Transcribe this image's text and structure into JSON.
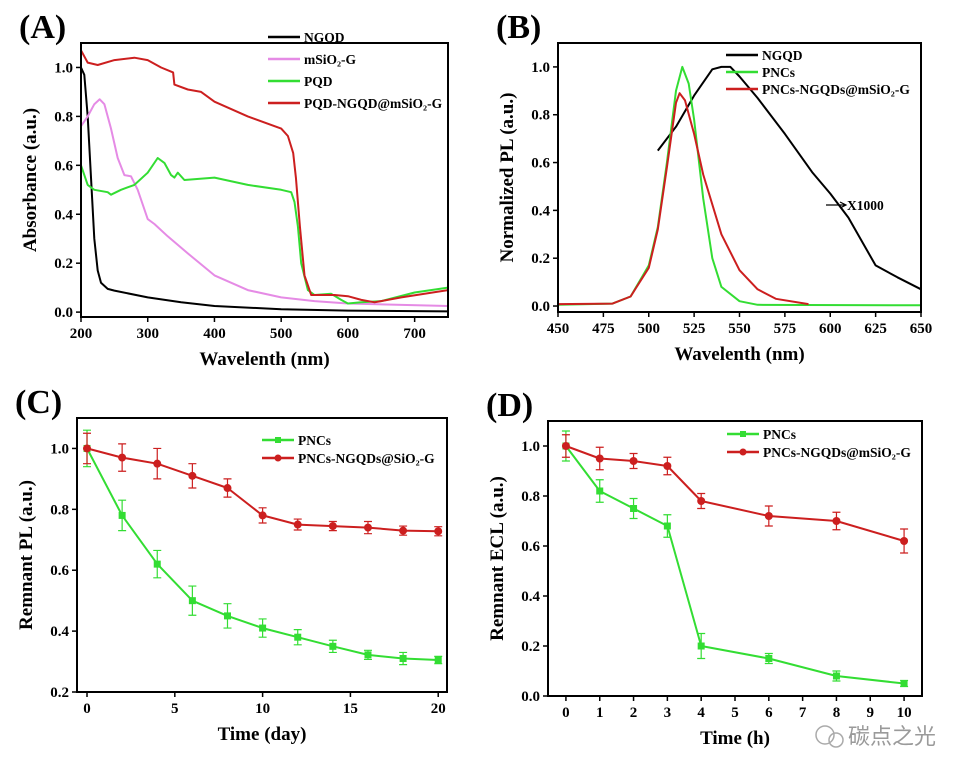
{
  "watermark": "碳点之光",
  "colors": {
    "black": "#000000",
    "pink": "#e58be5",
    "green": "#33dd33",
    "red": "#cc1f1f"
  },
  "chart_data": [
    {
      "panel": "(A)",
      "type": "line",
      "xlabel": "Wavelenth (nm)",
      "ylabel": "Absorbance (a.u.)",
      "xlim": [
        200,
        750
      ],
      "ylim": [
        -0.02,
        1.1
      ],
      "xticks": [
        "200",
        "300",
        "400",
        "500",
        "600",
        "700"
      ],
      "yticks": [
        "0.0",
        "0.2",
        "0.4",
        "0.6",
        "0.8",
        "1.0"
      ],
      "legend_position": "top-right",
      "series": [
        {
          "name": "NGQD",
          "color": "#000000",
          "points": [
            [
              200,
              1.0
            ],
            [
              205,
              0.97
            ],
            [
              210,
              0.8
            ],
            [
              215,
              0.55
            ],
            [
              220,
              0.3
            ],
            [
              225,
              0.17
            ],
            [
              230,
              0.12
            ],
            [
              240,
              0.095
            ],
            [
              250,
              0.088
            ],
            [
              300,
              0.06
            ],
            [
              350,
              0.04
            ],
            [
              400,
              0.025
            ],
            [
              500,
              0.012
            ],
            [
              600,
              0.006
            ],
            [
              750,
              0.003
            ]
          ]
        },
        {
          "name": "mSiO₂-G",
          "color": "#e58be5",
          "points": [
            [
              200,
              0.76
            ],
            [
              210,
              0.8
            ],
            [
              220,
              0.85
            ],
            [
              228,
              0.87
            ],
            [
              235,
              0.85
            ],
            [
              245,
              0.75
            ],
            [
              255,
              0.63
            ],
            [
              265,
              0.56
            ],
            [
              275,
              0.555
            ],
            [
              285,
              0.5
            ],
            [
              300,
              0.38
            ],
            [
              310,
              0.36
            ],
            [
              330,
              0.31
            ],
            [
              360,
              0.24
            ],
            [
              400,
              0.15
            ],
            [
              450,
              0.09
            ],
            [
              500,
              0.06
            ],
            [
              550,
              0.045
            ],
            [
              600,
              0.035
            ],
            [
              750,
              0.025
            ]
          ]
        },
        {
          "name": "PQD",
          "color": "#33dd33",
          "points": [
            [
              200,
              0.6
            ],
            [
              210,
              0.52
            ],
            [
              220,
              0.5
            ],
            [
              240,
              0.49
            ],
            [
              245,
              0.48
            ],
            [
              260,
              0.5
            ],
            [
              280,
              0.52
            ],
            [
              300,
              0.57
            ],
            [
              315,
              0.63
            ],
            [
              325,
              0.61
            ],
            [
              335,
              0.56
            ],
            [
              340,
              0.55
            ],
            [
              345,
              0.57
            ],
            [
              355,
              0.54
            ],
            [
              400,
              0.55
            ],
            [
              450,
              0.52
            ],
            [
              500,
              0.5
            ],
            [
              515,
              0.49
            ],
            [
              520,
              0.45
            ],
            [
              525,
              0.35
            ],
            [
              530,
              0.2
            ],
            [
              540,
              0.09
            ],
            [
              550,
              0.07
            ],
            [
              575,
              0.075
            ],
            [
              590,
              0.05
            ],
            [
              600,
              0.035
            ],
            [
              620,
              0.04
            ],
            [
              650,
              0.045
            ],
            [
              700,
              0.08
            ],
            [
              750,
              0.1
            ]
          ]
        },
        {
          "name": "PQD-NGQD@mSiO₂-G",
          "color": "#cc1f1f",
          "points": [
            [
              200,
              1.07
            ],
            [
              210,
              1.02
            ],
            [
              225,
              1.01
            ],
            [
              250,
              1.03
            ],
            [
              280,
              1.04
            ],
            [
              300,
              1.03
            ],
            [
              320,
              1.0
            ],
            [
              338,
              0.98
            ],
            [
              340,
              0.93
            ],
            [
              360,
              0.91
            ],
            [
              380,
              0.9
            ],
            [
              400,
              0.86
            ],
            [
              450,
              0.8
            ],
            [
              500,
              0.75
            ],
            [
              510,
              0.72
            ],
            [
              518,
              0.65
            ],
            [
              522,
              0.55
            ],
            [
              528,
              0.35
            ],
            [
              535,
              0.15
            ],
            [
              545,
              0.07
            ],
            [
              580,
              0.07
            ],
            [
              600,
              0.065
            ],
            [
              620,
              0.05
            ],
            [
              640,
              0.04
            ],
            [
              680,
              0.06
            ],
            [
              750,
              0.09
            ]
          ]
        }
      ]
    },
    {
      "panel": "(B)",
      "type": "line",
      "xlabel": "Wavelenth (nm)",
      "ylabel": "Normalized PL (a.u.)",
      "xlim": [
        450,
        650
      ],
      "ylim": [
        -0.025,
        1.1
      ],
      "xticks": [
        "450",
        "475",
        "500",
        "525",
        "550",
        "575",
        "600",
        "625",
        "650"
      ],
      "yticks": [
        "0.0",
        "0.2",
        "0.4",
        "0.6",
        "0.8",
        "1.0"
      ],
      "legend_position": "top-right",
      "annotation": "X1000",
      "series": [
        {
          "name": "NGQD",
          "color": "#000000",
          "points": [
            [
              505,
              0.65
            ],
            [
              515,
              0.75
            ],
            [
              525,
              0.88
            ],
            [
              535,
              0.99
            ],
            [
              540,
              1.0
            ],
            [
              545,
              1.0
            ],
            [
              550,
              0.96
            ],
            [
              560,
              0.87
            ],
            [
              575,
              0.72
            ],
            [
              590,
              0.56
            ],
            [
              600,
              0.47
            ],
            [
              610,
              0.37
            ],
            [
              625,
              0.17
            ],
            [
              637,
              0.12
            ],
            [
              650,
              0.07
            ]
          ]
        },
        {
          "name": "PNCs",
          "color": "#33dd33",
          "points": [
            [
              450,
              0.005
            ],
            [
              480,
              0.01
            ],
            [
              490,
              0.04
            ],
            [
              500,
              0.17
            ],
            [
              505,
              0.33
            ],
            [
              510,
              0.6
            ],
            [
              515,
              0.9
            ],
            [
              518.5,
              1.0
            ],
            [
              522,
              0.93
            ],
            [
              525,
              0.78
            ],
            [
              530,
              0.45
            ],
            [
              535,
              0.2
            ],
            [
              540,
              0.08
            ],
            [
              550,
              0.02
            ],
            [
              560,
              0.005
            ],
            [
              650,
              0.003
            ]
          ]
        },
        {
          "name": "PNCs-NGQDs@mSiO₂-G",
          "color": "#cc1f1f",
          "points": [
            [
              450,
              0.008
            ],
            [
              480,
              0.01
            ],
            [
              490,
              0.04
            ],
            [
              500,
              0.16
            ],
            [
              505,
              0.32
            ],
            [
              510,
              0.58
            ],
            [
              515,
              0.85
            ],
            [
              517,
              0.89
            ],
            [
              520,
              0.86
            ],
            [
              525,
              0.72
            ],
            [
              530,
              0.55
            ],
            [
              540,
              0.3
            ],
            [
              550,
              0.15
            ],
            [
              560,
              0.07
            ],
            [
              570,
              0.03
            ],
            [
              588,
              0.008
            ]
          ]
        }
      ]
    },
    {
      "panel": "(C)",
      "type": "line",
      "xlabel": "Time (day)",
      "ylabel": "Remnant PL (a.u.)",
      "xlim": [
        -0.57,
        20.5
      ],
      "ylim": [
        0.2,
        1.1
      ],
      "xticks": [
        "0",
        "5",
        "10",
        "15",
        "20"
      ],
      "yticks": [
        "0.2",
        "0.4",
        "0.6",
        "0.8",
        "1.0"
      ],
      "legend_position": "top-right",
      "x": [
        0,
        2,
        4,
        6,
        8,
        10,
        12,
        14,
        16,
        18,
        20
      ],
      "series": [
        {
          "name": "PNCs",
          "color": "#33dd33",
          "marker": "square",
          "values": [
            1.0,
            0.78,
            0.62,
            0.5,
            0.45,
            0.41,
            0.38,
            0.35,
            0.322,
            0.31,
            0.305
          ],
          "errors": [
            0.06,
            0.05,
            0.045,
            0.048,
            0.04,
            0.03,
            0.025,
            0.02,
            0.015,
            0.02,
            0.012
          ]
        },
        {
          "name": "PNCs-NGQDs@SiO₂-G",
          "color": "#cc1f1f",
          "marker": "circle",
          "values": [
            1.0,
            0.97,
            0.95,
            0.91,
            0.87,
            0.78,
            0.75,
            0.745,
            0.74,
            0.73,
            0.728
          ],
          "errors": [
            0.05,
            0.045,
            0.05,
            0.04,
            0.03,
            0.025,
            0.018,
            0.015,
            0.02,
            0.015,
            0.015
          ]
        }
      ]
    },
    {
      "panel": "(D)",
      "type": "line",
      "xlabel": "Time (h)",
      "ylabel": "Remnant ECL (a.u.)",
      "xlim": [
        -0.53,
        10.53
      ],
      "ylim": [
        0,
        1.1
      ],
      "xticks": [
        "0",
        "1",
        "2",
        "3",
        "4",
        "5",
        "6",
        "7",
        "8",
        "9",
        "10"
      ],
      "yticks": [
        "0.0",
        "0.2",
        "0.4",
        "0.6",
        "0.8",
        "1.0"
      ],
      "legend_position": "top-right",
      "x": [
        0,
        1,
        2,
        3,
        4,
        6,
        8,
        10
      ],
      "series": [
        {
          "name": "PNCs",
          "color": "#33dd33",
          "marker": "square",
          "values": [
            1.0,
            0.82,
            0.75,
            0.68,
            0.2,
            0.15,
            0.08,
            0.05
          ],
          "errors": [
            0.06,
            0.045,
            0.04,
            0.045,
            0.05,
            0.02,
            0.02,
            0.012
          ]
        },
        {
          "name": "PNCs-NGQDs@mSiO₂-G",
          "color": "#cc1f1f",
          "marker": "circle",
          "values": [
            1.0,
            0.95,
            0.94,
            0.92,
            0.78,
            0.72,
            0.7,
            0.62
          ],
          "errors": [
            0.045,
            0.045,
            0.03,
            0.035,
            0.03,
            0.04,
            0.035,
            0.048
          ]
        }
      ]
    }
  ]
}
